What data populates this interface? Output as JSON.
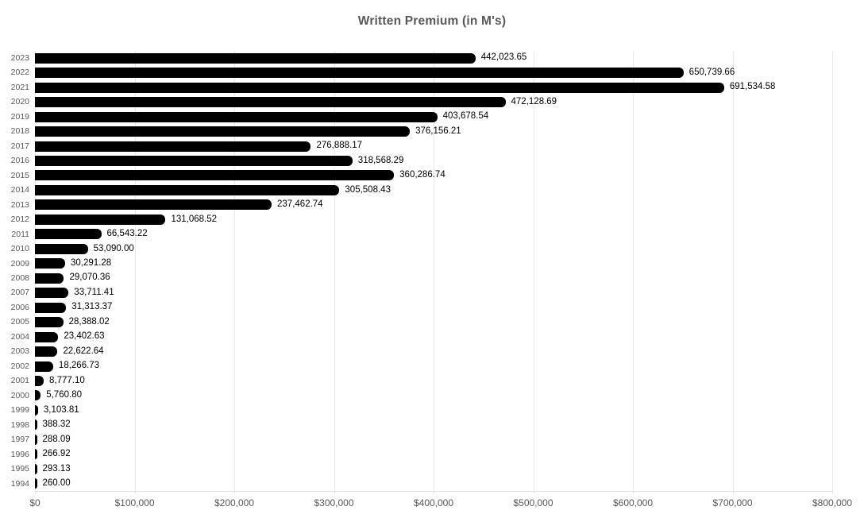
{
  "chart_data": {
    "type": "bar",
    "orientation": "horizontal",
    "title": "Written Premium (in M's)",
    "categories": [
      "2023",
      "2022",
      "2021",
      "2020",
      "2019",
      "2018",
      "2017",
      "2016",
      "2015",
      "2014",
      "2013",
      "2012",
      "2011",
      "2010",
      "2009",
      "2008",
      "2007",
      "2006",
      "2005",
      "2004",
      "2003",
      "2002",
      "2001",
      "2000",
      "1999",
      "1998",
      "1997",
      "1996",
      "1995",
      "1994"
    ],
    "values": [
      442023.65,
      650739.66,
      691534.58,
      472128.69,
      403678.54,
      376156.21,
      276888.17,
      318568.29,
      360286.74,
      305508.43,
      237462.74,
      131068.52,
      66543.22,
      53090.0,
      30291.28,
      29070.36,
      33711.41,
      31313.37,
      28388.02,
      23402.63,
      22622.64,
      18266.73,
      8777.1,
      5760.8,
      3103.81,
      388.32,
      288.09,
      266.92,
      293.13,
      260.0
    ],
    "value_labels": [
      "442,023.65",
      "650,739.66",
      "691,534.58",
      "472,128.69",
      "403,678.54",
      "376,156.21",
      "276,888.17",
      "318,568.29",
      "360,286.74",
      "305,508.43",
      "237,462.74",
      "131,068.52",
      "66,543.22",
      "53,090.00",
      "30,291.28",
      "29,070.36",
      "33,711.41",
      "31,313.37",
      "28,388.02",
      "23,402.63",
      "22,622.64",
      "18,266.73",
      "8,777.10",
      "5,760.80",
      "3,103.81",
      "388.32",
      "288.09",
      "266.92",
      "293.13",
      "260.00"
    ],
    "xlabel": "",
    "ylabel": "",
    "xlim": [
      0,
      800000
    ],
    "x_ticks": [
      0,
      100000,
      200000,
      300000,
      400000,
      500000,
      600000,
      700000,
      800000
    ],
    "x_tick_labels": [
      "$0",
      "$100,000",
      "$200,000",
      "$300,000",
      "$400,000",
      "$500,000",
      "$600,000",
      "$700,000",
      "$800,000"
    ],
    "grid": true,
    "legend": "none",
    "colors": {
      "bar": "#000000",
      "value_label": "#000000",
      "axis_text": "#595959",
      "title_text": "#595959",
      "gridline": "#e9e9e9",
      "axis_line": "#e2e2e2"
    }
  }
}
